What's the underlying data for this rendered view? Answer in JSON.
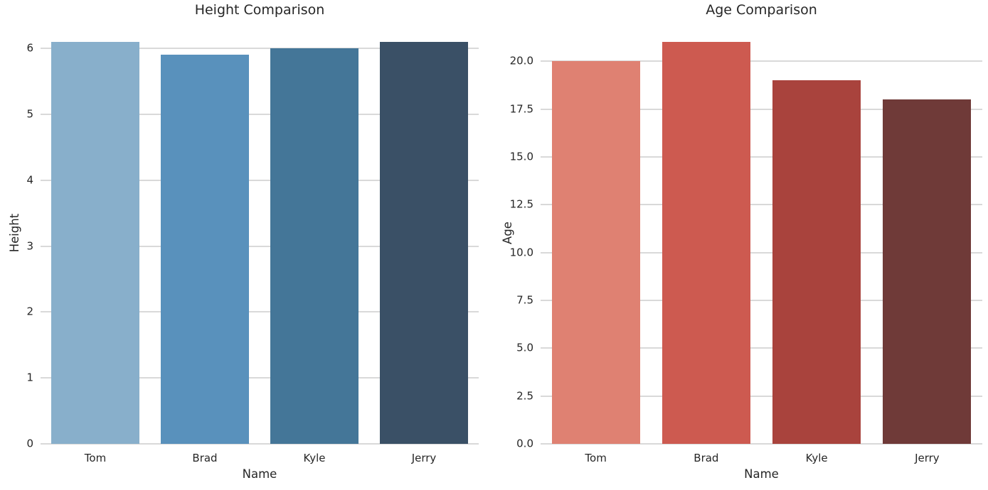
{
  "figure": {
    "background": "#ffffff",
    "text_color": "#262626",
    "grid_color": "#d9d9d9",
    "grid_on": true
  },
  "chart_data": [
    {
      "type": "bar",
      "title": "Height Comparison",
      "xlabel": "Name",
      "ylabel": "Height",
      "categories": [
        "Tom",
        "Brad",
        "Kyle",
        "Jerry"
      ],
      "values": [
        6.1,
        5.9,
        6.0,
        6.1
      ],
      "bar_colors": [
        "#88AFCB",
        "#5991BC",
        "#447698",
        "#3A5066"
      ],
      "ylim": [
        0,
        6.4
      ],
      "yticks": [
        0,
        1,
        2,
        3,
        4,
        5,
        6
      ],
      "ytick_labels": [
        "0",
        "1",
        "2",
        "3",
        "4",
        "5",
        "6"
      ],
      "legend": null
    },
    {
      "type": "bar",
      "title": "Age Comparison",
      "xlabel": "Name",
      "ylabel": "Age",
      "categories": [
        "Tom",
        "Brad",
        "Kyle",
        "Jerry"
      ],
      "values": [
        20,
        21,
        19,
        18
      ],
      "bar_colors": [
        "#DF8172",
        "#CD5A50",
        "#A9433D",
        "#6F3A38"
      ],
      "ylim": [
        0,
        22.05
      ],
      "yticks": [
        0,
        2.5,
        5,
        7.5,
        10,
        12.5,
        15,
        17.5,
        20
      ],
      "ytick_labels": [
        "0.0",
        "2.5",
        "5.0",
        "7.5",
        "10.0",
        "12.5",
        "15.0",
        "17.5",
        "20.0"
      ],
      "legend": null
    }
  ]
}
